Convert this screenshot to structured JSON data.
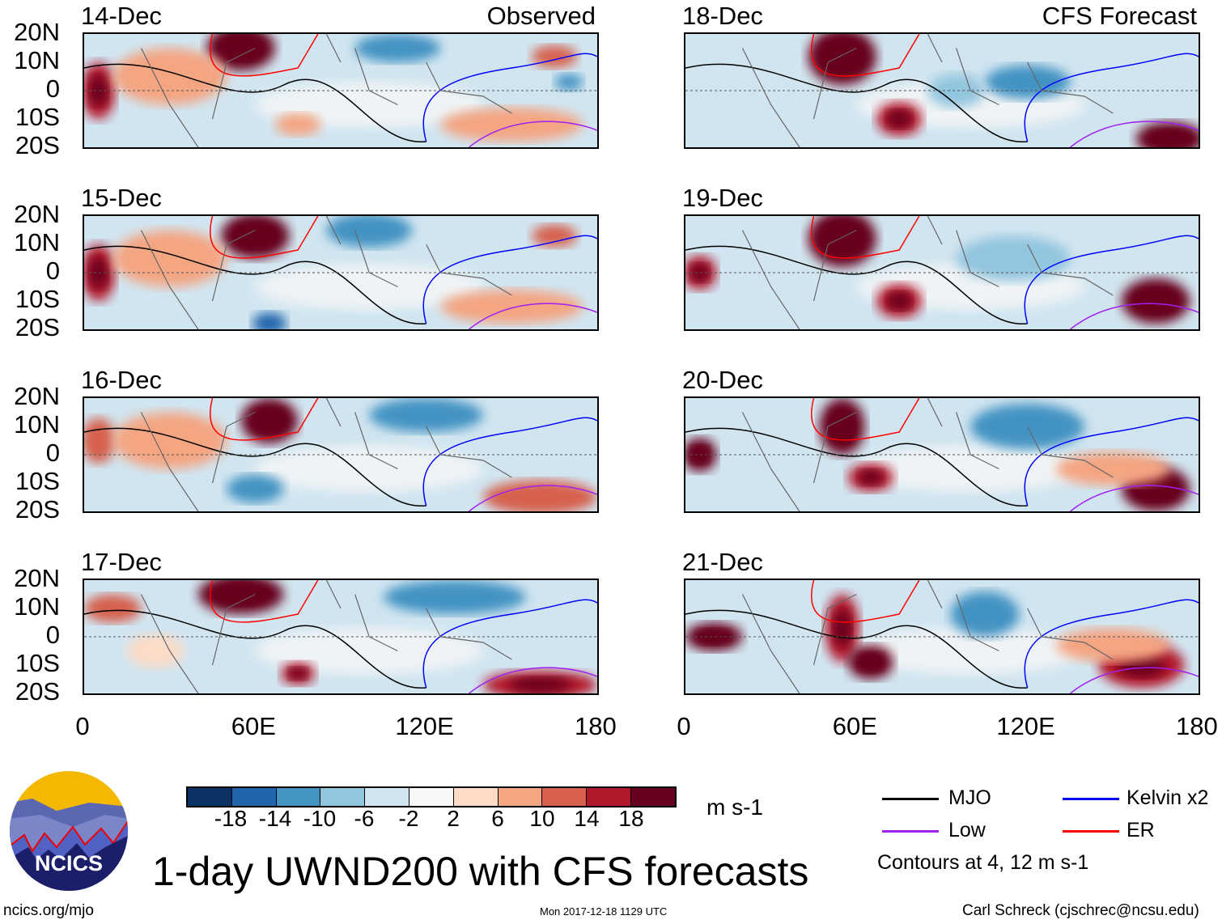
{
  "observed_label": "Observed",
  "forecast_label": "CFS Forecast",
  "panels_left": [
    {
      "date": "14-Dec"
    },
    {
      "date": "15-Dec"
    },
    {
      "date": "16-Dec"
    },
    {
      "date": "17-Dec"
    }
  ],
  "panels_right": [
    {
      "date": "18-Dec"
    },
    {
      "date": "19-Dec"
    },
    {
      "date": "20-Dec"
    },
    {
      "date": "21-Dec"
    }
  ],
  "y_ticks": [
    "20N",
    "10N",
    "0",
    "10S",
    "20S"
  ],
  "x_ticks": [
    "0",
    "60E",
    "120E",
    "180"
  ],
  "colorbar": {
    "colors": [
      "#0b3264",
      "#2166ac",
      "#4393c3",
      "#92c5de",
      "#d1e5f0",
      "#f7f7f7",
      "#fddbc7",
      "#f4a582",
      "#d6604d",
      "#b2182b",
      "#67001f"
    ],
    "labels": [
      "-18",
      "-14",
      "-10",
      "-6",
      "-2",
      "2",
      "6",
      "10",
      "14",
      "18"
    ],
    "units": "m s-1"
  },
  "legend": {
    "items": [
      {
        "label": "MJO",
        "color": "#000000"
      },
      {
        "label": "Kelvin x2",
        "color": "#0000ff"
      },
      {
        "label": "Low",
        "color": "#a020f0"
      },
      {
        "label": "ER",
        "color": "#ff0000"
      }
    ],
    "note": "Contours at 4, 12 m s-1"
  },
  "logo_text": "NCICS",
  "title": "1-day UWND200 with CFS forecasts",
  "footer": {
    "url": "ncics.org/mjo",
    "timestamp": "Mon 2017-12-18 1129 UTC",
    "author": "Carl Schreck (cjschrec@ncsu.edu)"
  }
}
